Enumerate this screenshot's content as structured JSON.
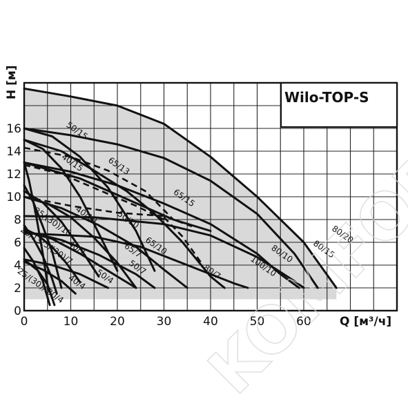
{
  "chart_data": {
    "type": "line",
    "title": "Wilo-TOP-S",
    "xlabel": "Q [м³/ч]",
    "ylabel": "H [м]",
    "xlim": [
      0,
      80
    ],
    "ylim": [
      0,
      20
    ],
    "x_ticks": [
      "0",
      "10",
      "20",
      "30",
      "40",
      "50",
      "60"
    ],
    "y_ticks": [
      "0",
      "2",
      "4",
      "6",
      "8",
      "10",
      "12",
      "14",
      "16"
    ],
    "grid": true,
    "shaded_region": "operating-area",
    "watermark": "KOMFORT.RU",
    "series": [
      {
        "name": "80/20",
        "label_at": [
          68,
          6.5
        ],
        "points": [
          [
            0,
            19.5
          ],
          [
            10,
            18.8
          ],
          [
            20,
            18
          ],
          [
            30,
            16.4
          ],
          [
            40,
            13.5
          ],
          [
            50,
            10
          ],
          [
            60,
            6
          ],
          [
            67,
            2
          ]
        ]
      },
      {
        "name": "80/15",
        "label_at": [
          64,
          5.2
        ],
        "points": [
          [
            0,
            16
          ],
          [
            10,
            15.4
          ],
          [
            20,
            14.6
          ],
          [
            30,
            13.4
          ],
          [
            40,
            11.4
          ],
          [
            50,
            8.5
          ],
          [
            58,
            5
          ],
          [
            63,
            2
          ]
        ]
      },
      {
        "name": "80/10",
        "label_at": [
          55,
          4.8
        ],
        "points": [
          [
            0,
            13
          ],
          [
            10,
            12.2
          ],
          [
            20,
            11
          ],
          [
            30,
            9.4
          ],
          [
            40,
            7.6
          ],
          [
            50,
            5
          ],
          [
            55,
            3.2
          ],
          [
            59,
            2
          ]
        ]
      },
      {
        "name": "100/10",
        "label_at": [
          51,
          3.7
        ],
        "points": [
          [
            0,
            8.3
          ],
          [
            15,
            8.2
          ],
          [
            30,
            7.6
          ],
          [
            40,
            6.6
          ],
          [
            50,
            4.7
          ],
          [
            58,
            2.6
          ],
          [
            60,
            2
          ]
        ]
      },
      {
        "name": "80/7",
        "label_at": [
          40,
          3.2
        ],
        "points": [
          [
            0,
            6.8
          ],
          [
            15,
            6.5
          ],
          [
            25,
            5.6
          ],
          [
            35,
            4
          ],
          [
            45,
            2.4
          ],
          [
            48,
            2
          ]
        ]
      },
      {
        "name": "65/15",
        "label_at": [
          34,
          9.7
        ],
        "points": [
          [
            0,
            15
          ],
          [
            8,
            14
          ],
          [
            15,
            12.3
          ],
          [
            22,
            10.5
          ],
          [
            28,
            8.5
          ],
          [
            34,
            6
          ],
          [
            40,
            3
          ],
          [
            43,
            2
          ]
        ]
      },
      {
        "name": "65/13",
        "label_at": [
          20,
          12.5
        ],
        "points": [
          [
            0,
            13
          ],
          [
            12,
            11.6
          ],
          [
            22,
            9.8
          ],
          [
            32,
            8
          ],
          [
            40,
            7
          ]
        ]
      },
      {
        "name": "65/10",
        "label_at": [
          28,
          5.5
        ],
        "points": [
          [
            0,
            10
          ],
          [
            8,
            9
          ],
          [
            16,
            7.5
          ],
          [
            24,
            5.6
          ],
          [
            30,
            3.6
          ],
          [
            35,
            2
          ]
        ]
      },
      {
        "name": "65/7",
        "label_at": [
          23,
          5.1
        ],
        "points": [
          [
            0,
            7
          ],
          [
            8,
            6.2
          ],
          [
            16,
            4.9
          ],
          [
            24,
            3.2
          ],
          [
            28,
            2
          ]
        ]
      },
      {
        "name": "50/15",
        "label_at": [
          11,
          15.6
        ],
        "points": [
          [
            0,
            16
          ],
          [
            6,
            15.3
          ],
          [
            12,
            13.5
          ],
          [
            18,
            10.8
          ],
          [
            24,
            7
          ],
          [
            28,
            3.5
          ]
        ]
      },
      {
        "name": "40/15",
        "label_at": [
          10,
          12.8
        ],
        "points": [
          [
            0,
            15
          ],
          [
            4,
            14.2
          ],
          [
            8,
            12.5
          ],
          [
            12,
            10
          ],
          [
            16,
            6.8
          ],
          [
            20,
            3.5
          ]
        ]
      },
      {
        "name": "50/10",
        "label_at": [
          22,
          7.8
        ],
        "points": [
          [
            0,
            10
          ],
          [
            5,
            9.4
          ],
          [
            10,
            8.2
          ],
          [
            15,
            6.4
          ],
          [
            20,
            4.2
          ],
          [
            24,
            2
          ]
        ]
      },
      {
        "name": "40/10",
        "label_at": [
          13,
          8.2
        ],
        "points": [
          [
            0,
            10.5
          ],
          [
            4,
            9.5
          ],
          [
            8,
            7.8
          ],
          [
            12,
            5.5
          ],
          [
            16,
            3
          ]
        ]
      },
      {
        "name": "50/7",
        "label_at": [
          24,
          3.6
        ],
        "points": [
          [
            0,
            7
          ],
          [
            6,
            6.3
          ],
          [
            12,
            5
          ],
          [
            18,
            3.5
          ],
          [
            24,
            2
          ]
        ]
      },
      {
        "name": "50/4",
        "label_at": [
          17,
          2.8
        ],
        "points": [
          [
            0,
            4.5
          ],
          [
            6,
            4
          ],
          [
            12,
            3.2
          ],
          [
            18,
            2
          ]
        ]
      },
      {
        "name": "40/7",
        "label_at": [
          11,
          5.3
        ],
        "points": [
          [
            0,
            7.2
          ],
          [
            3,
            6.6
          ],
          [
            6,
            5.6
          ],
          [
            9,
            4.2
          ],
          [
            12,
            2.5
          ]
        ]
      },
      {
        "name": "40/4",
        "label_at": [
          11,
          2.3
        ],
        "points": [
          [
            0,
            4.3
          ],
          [
            4,
            3.6
          ],
          [
            8,
            2.6
          ],
          [
            11,
            1.5
          ]
        ]
      },
      {
        "name": "25/(30)/10",
        "label_at": [
          5.8,
          7.6
        ],
        "points": [
          [
            0,
            11
          ],
          [
            2,
            9.5
          ],
          [
            4,
            7.4
          ],
          [
            6,
            5.2
          ],
          [
            8,
            2
          ]
        ]
      },
      {
        "name": "25/(30)/7",
        "label_at": [
          6.5,
          5.0
        ],
        "points": [
          [
            0,
            7.5
          ],
          [
            2,
            6.3
          ],
          [
            4,
            4.8
          ],
          [
            6,
            2.8
          ],
          [
            7,
            1.5
          ]
        ]
      },
      {
        "name": "25/13",
        "label_at": [
          1.2,
          6.4
        ],
        "points": [
          [
            0,
            13
          ],
          [
            1,
            11.5
          ],
          [
            2.5,
            8.5
          ],
          [
            4,
            5
          ],
          [
            5.2,
            1.8
          ]
        ]
      },
      {
        "name": "25/(30)/5",
        "label_at": [
          1.8,
          2.4
        ],
        "points": [
          [
            0,
            5.5
          ],
          [
            2,
            4.3
          ],
          [
            4,
            2.6
          ],
          [
            5.5,
            0.5
          ]
        ]
      },
      {
        "name": "30/4",
        "label_at": [
          6.3,
          1.1
        ],
        "points": [
          [
            0,
            4.5
          ],
          [
            3,
            3.5
          ],
          [
            5,
            2.3
          ],
          [
            6.5,
            0.5
          ]
        ]
      }
    ],
    "dashed_series": [
      {
        "name": "boundary-1",
        "points": [
          [
            0,
            14.3
          ],
          [
            10,
            13.5
          ],
          [
            18,
            12.3
          ],
          [
            26,
            10.5
          ],
          [
            32,
            8
          ]
        ]
      },
      {
        "name": "boundary-2",
        "points": [
          [
            0,
            12.8
          ],
          [
            8,
            12
          ],
          [
            16,
            10.6
          ],
          [
            24,
            9.2
          ],
          [
            30,
            8
          ]
        ]
      },
      {
        "name": "boundary-3",
        "points": [
          [
            0,
            10
          ],
          [
            10,
            9.2
          ],
          [
            20,
            8.6
          ],
          [
            30,
            8.3
          ],
          [
            36,
            7.4
          ]
        ]
      },
      {
        "name": "boundary-4",
        "points": [
          [
            30,
            8.2
          ],
          [
            34,
            6.5
          ],
          [
            38,
            4.2
          ]
        ]
      }
    ]
  }
}
